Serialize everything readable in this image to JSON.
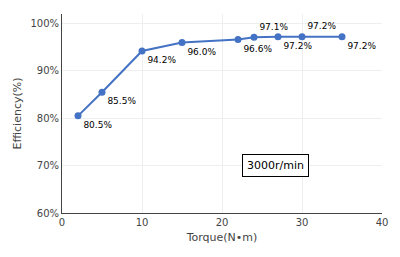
{
  "chart_data": {
    "type": "line",
    "x": [
      2,
      5,
      10,
      15,
      22,
      24,
      27,
      30,
      35
    ],
    "values": [
      80.5,
      85.5,
      94.2,
      96.0,
      96.6,
      97.1,
      97.2,
      97.2,
      97.2
    ],
    "value_labels": [
      "80.5%",
      "85.5%",
      "94.2%",
      "96.0%",
      "96.6%",
      "97.1%",
      "97.2%",
      "97.2%",
      "97.2%"
    ],
    "data_labels": true,
    "color": "#4472C4",
    "marker": "circle",
    "xlabel": "Torque(N•m)",
    "ylabel": "Efficiency(%)",
    "xlim": [
      0,
      40
    ],
    "ylim": [
      60,
      102
    ],
    "xticks": [
      0,
      10,
      20,
      30,
      40
    ],
    "yticks": [
      {
        "value": 60,
        "label": "60%"
      },
      {
        "value": 70,
        "label": "70%"
      },
      {
        "value": 80,
        "label": "80%"
      },
      {
        "value": 90,
        "label": "90%"
      },
      {
        "value": 100,
        "label": "100%"
      }
    ],
    "grid": true,
    "annotations": [
      {
        "text": "3000r/min",
        "x": 22.5,
        "y": 67.5
      }
    ]
  }
}
